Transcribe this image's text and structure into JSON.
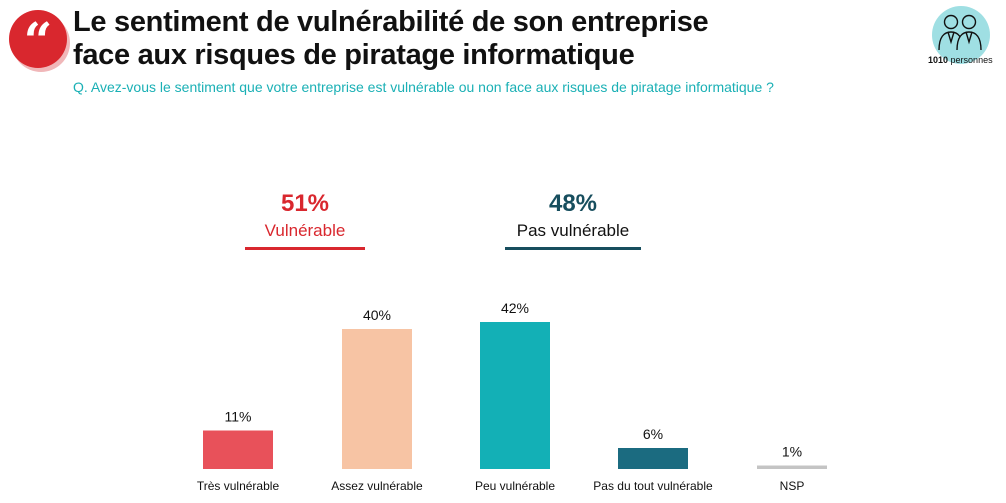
{
  "header": {
    "title_line1": "Le sentiment de vulnérabilité de son entreprise",
    "title_line2": "face aux risques de piratage informatique",
    "question": "Q. Avez-vous le sentiment que votre entreprise est vulnérable ou non face aux risques de piratage informatique ?",
    "quote_glyph": "“",
    "panel_count": "1010",
    "panel_unit": "personnes",
    "panel_icon": "two-people-icon"
  },
  "groups": [
    {
      "pct": "51%",
      "label": "Vulnérable",
      "color": "#d9272e"
    },
    {
      "pct": "48%",
      "label": "Pas vulnérable",
      "color": "#174e5e"
    }
  ],
  "colors": {
    "title": "#111111",
    "question": "#1ab0b5",
    "accent": "#d9272e"
  },
  "chart_data": {
    "type": "bar",
    "categories": [
      "Très vulnérable",
      "Assez vulnérable",
      "Peu vulnérable",
      "Pas du tout vulnérable",
      "NSP"
    ],
    "values": [
      11,
      40,
      42,
      6,
      1
    ],
    "value_labels": [
      "11%",
      "40%",
      "42%",
      "6%",
      "1%"
    ],
    "colors": [
      "#e8515a",
      "#f7c4a4",
      "#13b0b6",
      "#1b6b80",
      "#c4c4c4"
    ],
    "ylim": [
      0,
      42
    ],
    "grid": false,
    "legend": "none"
  }
}
